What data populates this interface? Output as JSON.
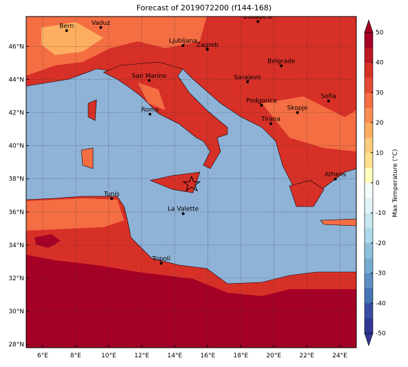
{
  "title": "Forecast of 2019072200 (f144-168)",
  "map": {
    "xlim": [
      5,
      25
    ],
    "ylim": [
      27.8,
      47.8
    ],
    "xticks": [
      {
        "value": 6,
        "label": "6°E"
      },
      {
        "value": 8,
        "label": "8°E"
      },
      {
        "value": 10,
        "label": "10°E"
      },
      {
        "value": 12,
        "label": "12°E"
      },
      {
        "value": 14,
        "label": "14°E"
      },
      {
        "value": 16,
        "label": "16°E"
      },
      {
        "value": 18,
        "label": "18°E"
      },
      {
        "value": 20,
        "label": "20°E"
      },
      {
        "value": 22,
        "label": "22°E"
      },
      {
        "value": 24,
        "label": "24°E"
      }
    ],
    "yticks": [
      {
        "value": 28,
        "label": "28°N"
      },
      {
        "value": 30,
        "label": "30°N"
      },
      {
        "value": 32,
        "label": "32°N"
      },
      {
        "value": 34,
        "label": "34°N"
      },
      {
        "value": 36,
        "label": "36°N"
      },
      {
        "value": 38,
        "label": "38°N"
      },
      {
        "value": 40,
        "label": "40°N"
      },
      {
        "value": 42,
        "label": "42°N"
      },
      {
        "value": 44,
        "label": "44°N"
      },
      {
        "value": 46,
        "label": "46°N"
      }
    ],
    "grid": true,
    "cities": [
      "Bern",
      "Vaduz",
      "Budapest",
      "Ljubljana",
      "Zagreb",
      "Belgrade",
      "San Marino",
      "Sarajevo",
      "Sofia",
      "Podgorica",
      "Roma",
      "Skopje",
      "Tirana",
      "Athens",
      "Tunis",
      "La Valette",
      "Tripoli"
    ]
  },
  "colorbar": {
    "label": "Max Temperature (°C)",
    "lim": [
      -50,
      50
    ],
    "ticks": [
      -50,
      -40,
      -30,
      -20,
      -10,
      0,
      10,
      20,
      30,
      40,
      50
    ],
    "colors": [
      "#313695",
      "#3a4ea1",
      "#4575b4",
      "#5b8fc2",
      "#74add1",
      "#8fc1dd",
      "#abd9e9",
      "#c6e6ef",
      "#e0f3f8",
      "#f4fbfb",
      "#ffffbf",
      "#fee090",
      "#fdcb7c",
      "#fdae61",
      "#f88d52",
      "#f46d43",
      "#e34a33",
      "#d73027",
      "#bd1726",
      "#a50026"
    ]
  }
}
